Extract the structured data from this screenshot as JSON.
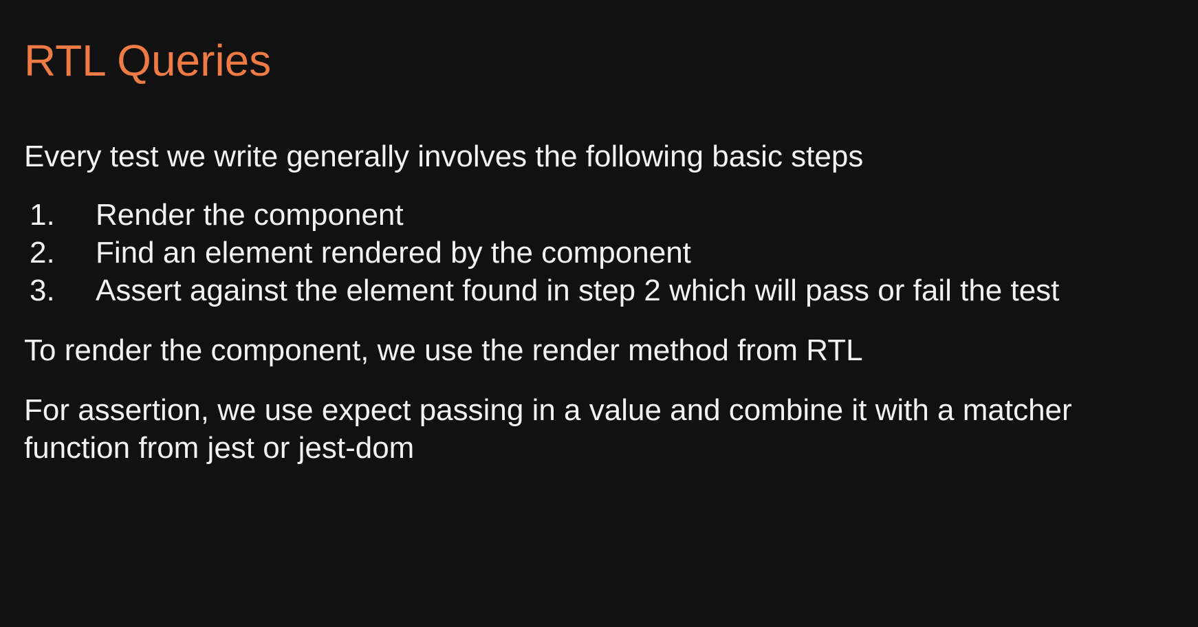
{
  "slide": {
    "title": "RTL Queries",
    "intro": "Every test we write generally involves the following basic steps",
    "steps": [
      {
        "number": "1.",
        "text": "Render the component"
      },
      {
        "number": "2.",
        "text": "Find an element rendered by the component"
      },
      {
        "number": "3.",
        "text": "Assert against the element found in step 2 which will pass or fail the test"
      }
    ],
    "render_note": "To render the component, we use the render method from RTL",
    "assertion_note_line1": "For assertion, we use expect passing in a value and combine it with a matcher",
    "assertion_note_line2": "function from jest or jest-dom"
  },
  "colors": {
    "background": "#111111",
    "title": "#ee7b45",
    "text": "#f2f2f2"
  }
}
